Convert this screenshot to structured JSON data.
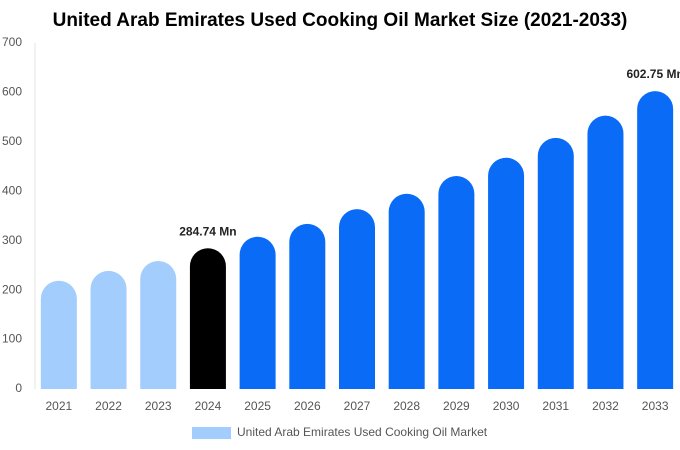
{
  "chart_data": {
    "type": "bar",
    "title": "United Arab Emirates Used Cooking Oil Market Size (2021-2033)",
    "categories": [
      "2021",
      "2022",
      "2023",
      "2024",
      "2025",
      "2026",
      "2027",
      "2028",
      "2029",
      "2030",
      "2031",
      "2032",
      "2033"
    ],
    "series": [
      {
        "name": "United Arab Emirates Used Cooking Oil Market",
        "color": "#a3cdfd",
        "values": [
          219,
          239,
          259,
          284.74,
          308,
          334,
          364,
          395,
          431,
          468,
          508,
          553,
          602.75
        ],
        "value_labels": [
          null,
          null,
          null,
          "284.74 Mn",
          null,
          null,
          null,
          null,
          null,
          null,
          null,
          null,
          "602.75 Mn"
        ],
        "bar_colors": [
          "#a3cdfd",
          "#a3cdfd",
          "#a3cdfd",
          "#000000",
          "#0a6cf6",
          "#0a6cf6",
          "#0a6cf6",
          "#0a6cf6",
          "#0a6cf6",
          "#0a6cf6",
          "#0a6cf6",
          "#0a6cf6",
          "#0a6cf6"
        ]
      }
    ],
    "ylim": [
      0,
      700
    ],
    "yticks": [
      0,
      100,
      200,
      300,
      400,
      500,
      600,
      700
    ],
    "grid": false,
    "legend": "bottom"
  }
}
